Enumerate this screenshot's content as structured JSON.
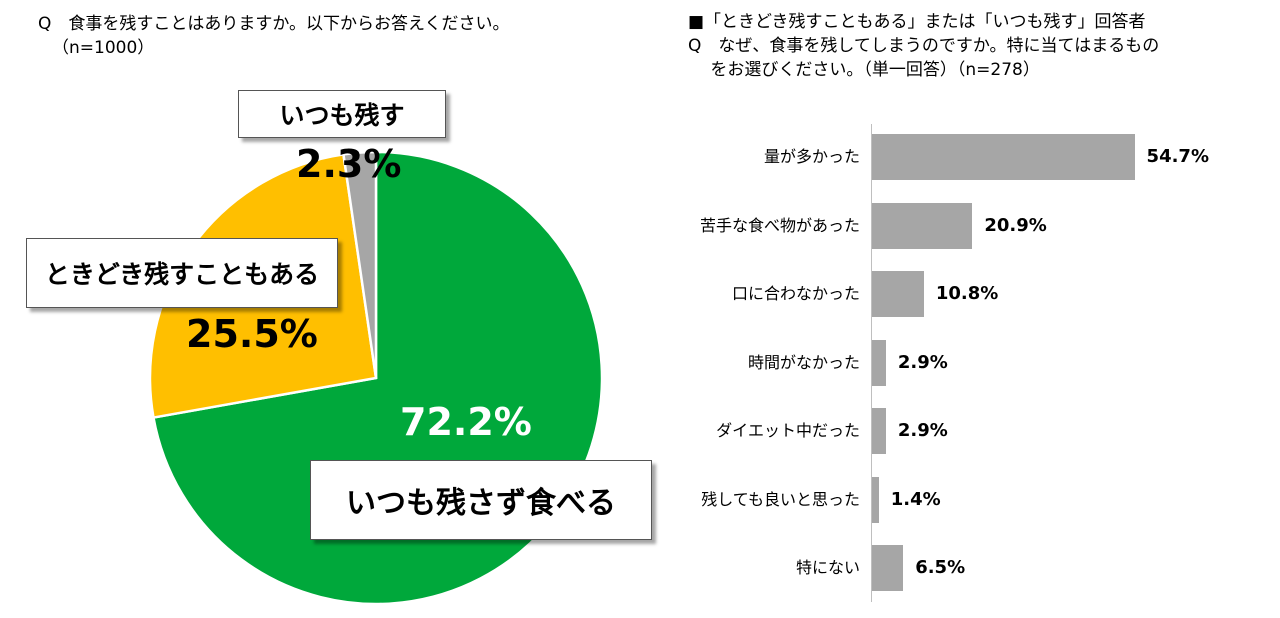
{
  "left_question": {
    "line1": "Q　食事を残すことはありますか。以下からお答えください。",
    "line2": "（n=1000）"
  },
  "right_question": {
    "line1": "■「ときどき残すこともある」または「いつも残す」回答者",
    "line2": "Q　なぜ、食事を残してしまうのですか。特に当てはまるもの",
    "line3": "　  をお選びください。（単一回答）（n=278）"
  },
  "chart_data": [
    {
      "type": "pie",
      "title": "",
      "slices": [
        {
          "label": "いつも残さず食べる",
          "value": 72.2,
          "value_label": "72.2%",
          "color": "#00a83b",
          "label_color": "#ffffff"
        },
        {
          "label": "ときどき残すこともある",
          "value": 25.5,
          "value_label": "25.5%",
          "color": "#ffbf00",
          "label_color": "#000000"
        },
        {
          "label": "いつも残す",
          "value": 2.3,
          "value_label": "2.3%",
          "color": "#a6a6a6",
          "label_color": "#000000"
        }
      ]
    },
    {
      "type": "bar",
      "orientation": "horizontal",
      "title": "",
      "color": "#a6a6a6",
      "categories": [
        "量が多かった",
        "苦手な食べ物があった",
        "口に合わなかった",
        "時間がなかった",
        "ダイエット中だった",
        "残しても良いと思った",
        "特にない"
      ],
      "values": [
        54.7,
        20.9,
        10.8,
        2.9,
        2.9,
        1.4,
        6.5
      ],
      "value_labels": [
        "54.7%",
        "20.9%",
        "10.8%",
        "2.9%",
        "2.9%",
        "1.4%",
        "6.5%"
      ],
      "xlim": [
        0,
        100
      ]
    }
  ]
}
